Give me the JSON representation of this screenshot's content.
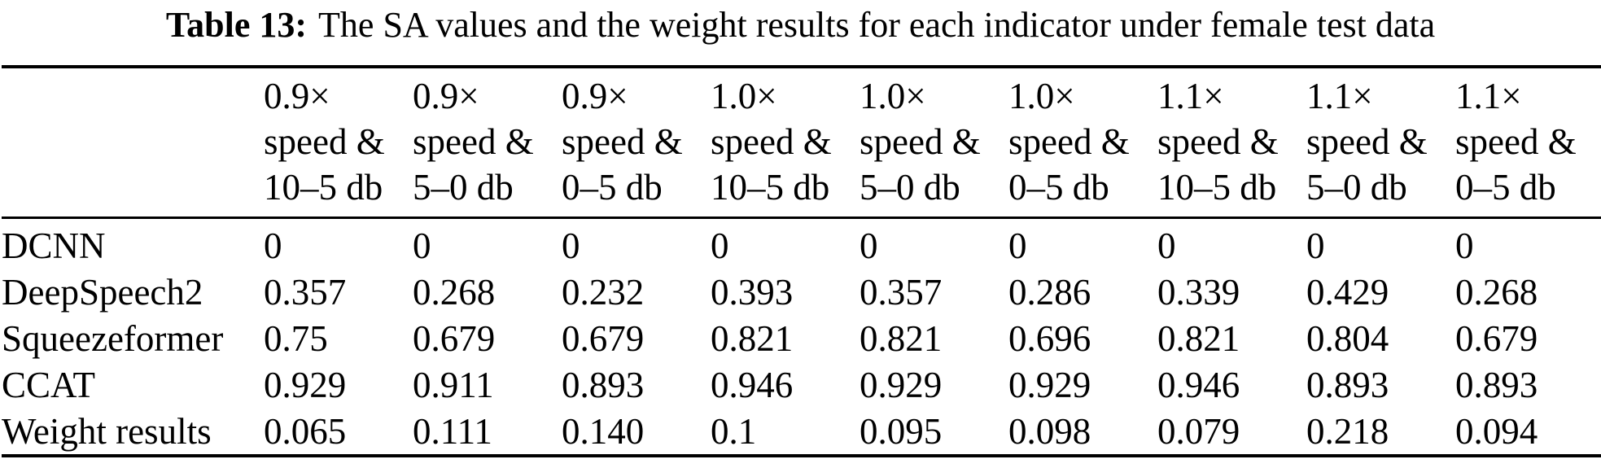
{
  "caption": {
    "label": "Table 13:",
    "text": "The SA values and the weight results for each indicator under female test data"
  },
  "table": {
    "columns": [
      {
        "lines": [
          "0.9×",
          "speed &",
          "10–5 db"
        ]
      },
      {
        "lines": [
          "0.9×",
          "speed &",
          "5–0 db"
        ]
      },
      {
        "lines": [
          "0.9×",
          "speed &",
          "0–5 db"
        ]
      },
      {
        "lines": [
          "1.0×",
          "speed &",
          "10–5 db"
        ]
      },
      {
        "lines": [
          "1.0×",
          "speed &",
          "5–0 db"
        ]
      },
      {
        "lines": [
          "1.0×",
          "speed &",
          "0–5 db"
        ]
      },
      {
        "lines": [
          "1.1×",
          "speed &",
          "10–5 db"
        ]
      },
      {
        "lines": [
          "1.1×",
          "speed &",
          "5–0 db"
        ]
      },
      {
        "lines": [
          "1.1×",
          "speed &",
          "0–5 db"
        ]
      }
    ],
    "rows": [
      {
        "label": "DCNN",
        "values": [
          "0",
          "0",
          "0",
          "0",
          "0",
          "0",
          "0",
          "0",
          "0"
        ]
      },
      {
        "label": "DeepSpeech2",
        "values": [
          "0.357",
          "0.268",
          "0.232",
          "0.393",
          "0.357",
          "0.286",
          "0.339",
          "0.429",
          "0.268"
        ]
      },
      {
        "label": "Squeezeformer",
        "values": [
          "0.75",
          "0.679",
          "0.679",
          "0.821",
          "0.821",
          "0.696",
          "0.821",
          "0.804",
          "0.679"
        ]
      },
      {
        "label": "CCAT",
        "values": [
          "0.929",
          "0.911",
          "0.893",
          "0.946",
          "0.929",
          "0.929",
          "0.946",
          "0.893",
          "0.893"
        ]
      },
      {
        "label": "Weight results",
        "values": [
          "0.065",
          "0.111",
          "0.140",
          "0.1",
          "0.095",
          "0.098",
          "0.079",
          "0.218",
          "0.094"
        ]
      }
    ]
  }
}
